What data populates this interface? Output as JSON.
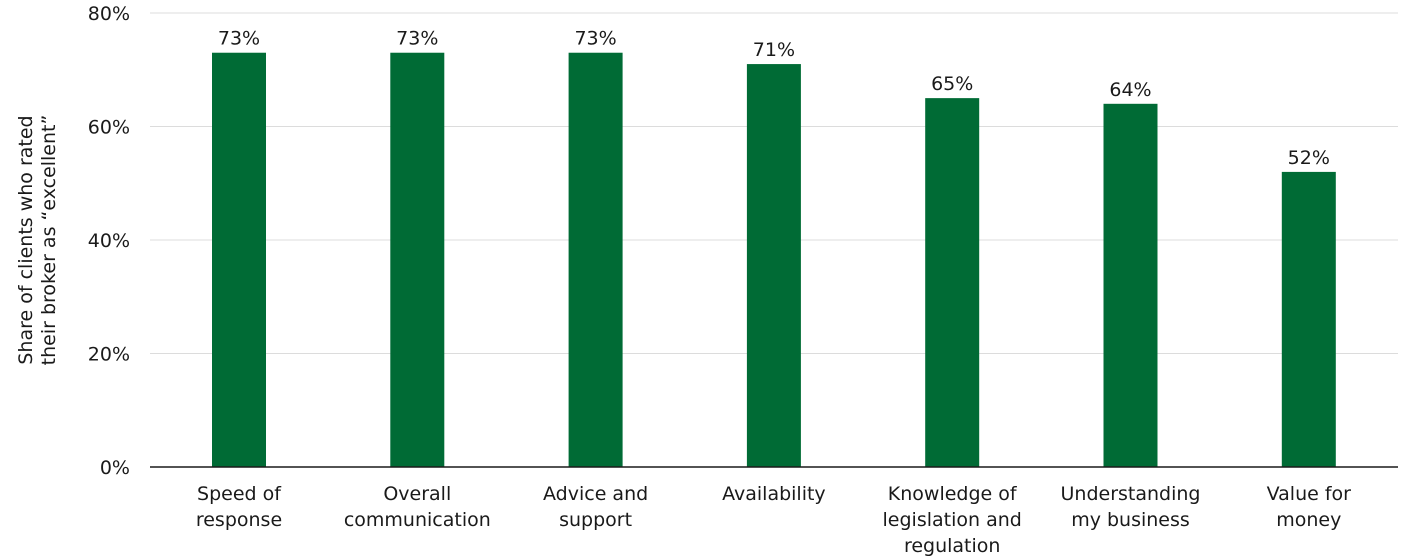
{
  "chart_data": {
    "type": "bar",
    "categories": [
      [
        "Speed of",
        "response"
      ],
      [
        "Overall",
        "communication"
      ],
      [
        "Advice and",
        "support"
      ],
      [
        "Availability"
      ],
      [
        "Knowledge of",
        "legislation and",
        "regulation"
      ],
      [
        "Understanding",
        "my business"
      ],
      [
        "Value for",
        "money"
      ]
    ],
    "values": [
      73,
      73,
      73,
      71,
      65,
      64,
      52
    ],
    "data_labels": [
      "73%",
      "73%",
      "73%",
      "71%",
      "65%",
      "64%",
      "52%"
    ],
    "ylabel": [
      "Share of clients who rated",
      "their broker as “excellent”"
    ],
    "ylim": [
      0,
      80
    ],
    "yticks": [
      0,
      20,
      40,
      60,
      80
    ],
    "ytick_labels": [
      "0%",
      "20%",
      "40%",
      "60%",
      "80%"
    ],
    "grid": true,
    "colors": {
      "bar": "#006B35",
      "grid": "#dcdcdc",
      "text": "#1a1a1a"
    }
  }
}
